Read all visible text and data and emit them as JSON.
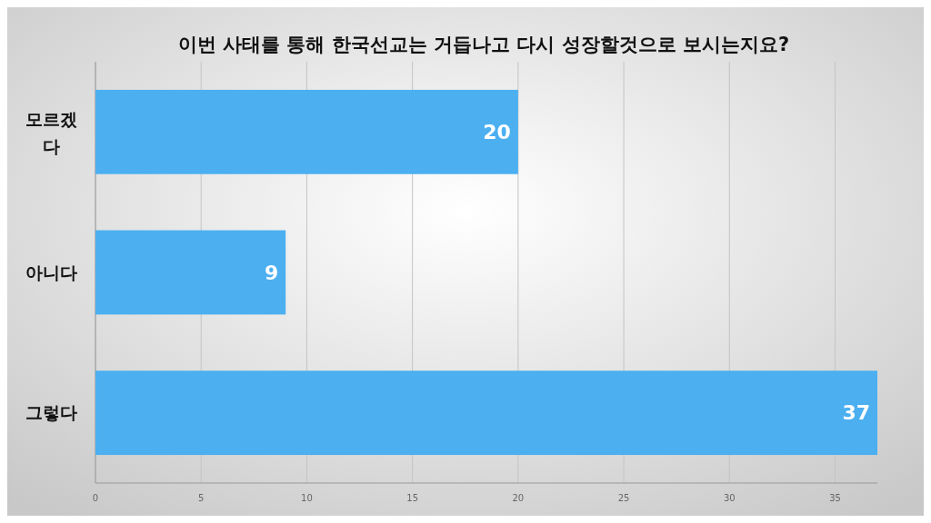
{
  "chart_data": {
    "type": "bar",
    "orientation": "horizontal",
    "title": "이번 사태를 통해 한국선교는 거듭나고 다시 성장할것으로 보시는지요?",
    "categories": [
      "모르겠다",
      "아니다",
      "그렇다"
    ],
    "values": [
      20,
      9,
      37
    ],
    "color": "#4baff0",
    "xlim": [
      0,
      37
    ],
    "xticks": [
      0,
      5,
      10,
      15,
      20,
      25,
      30,
      35
    ],
    "grid": "x",
    "data_labels": true
  }
}
